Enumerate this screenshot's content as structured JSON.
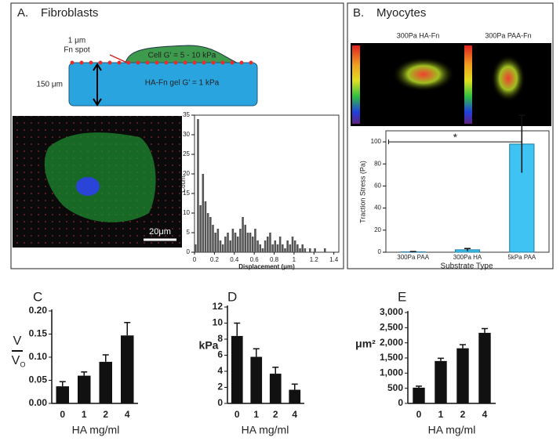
{
  "figure": {
    "A": {
      "label": "A.",
      "title": "Fibroblasts",
      "spot_line1": "1 μm",
      "spot_line2": "Fn spot",
      "cell": "Cell G' = 5 - 10 kPa",
      "height": "150 μm",
      "gel": "HA-Fn gel G' = 1 kPa",
      "scale_bar": "20μm"
    },
    "B": {
      "label": "B.",
      "title": "Myocytes",
      "image_left": "300Pa HA-Fn",
      "image_right": "300Pa PAA-Fn"
    }
  },
  "chart_data": [
    {
      "type": "histogram",
      "xlabel": "Displacement (μm)",
      "ylabel": "Count",
      "color": "#555555",
      "bins": [
        0,
        0.025,
        0.05,
        0.075,
        0.1,
        0.125,
        0.15,
        0.175,
        0.2,
        0.225,
        0.25,
        0.275,
        0.3,
        0.325,
        0.35,
        0.375,
        0.4,
        0.425,
        0.45,
        0.475,
        0.5,
        0.525,
        0.55,
        0.575,
        0.6,
        0.625,
        0.65,
        0.675,
        0.7,
        0.725,
        0.75,
        0.775,
        0.8,
        0.825,
        0.85,
        0.875,
        0.9,
        0.925,
        0.95,
        0.975,
        1.0,
        1.025,
        1.05,
        1.075,
        1.1,
        1.125,
        1.15,
        1.175,
        1.2,
        1.225,
        1.25,
        1.275,
        1.3,
        1.325,
        1.35
      ],
      "counts": [
        2,
        34,
        12,
        20,
        13,
        10,
        9,
        7,
        5,
        6,
        3,
        2,
        4,
        5,
        3,
        6,
        5,
        4,
        6,
        9,
        7,
        5,
        5,
        4,
        6,
        3,
        2,
        1,
        3,
        4,
        5,
        2,
        3,
        2,
        4,
        2,
        1,
        3,
        2,
        4,
        3,
        2,
        1,
        2,
        1,
        0,
        1,
        0,
        1,
        0,
        0,
        0,
        1,
        0
      ],
      "xlim": [
        0,
        1.45
      ],
      "xticks": [
        0,
        0.2,
        0.4,
        0.6,
        0.8,
        1,
        1.2,
        1.4
      ],
      "ylim": [
        0,
        35
      ],
      "yticks": [
        0,
        5,
        10,
        15,
        20,
        25,
        30,
        35
      ]
    },
    {
      "type": "bar",
      "xlabel": "Substrate Type",
      "ylabel": "Traction Stress (Pa)",
      "annotation": "*",
      "color": "#3ec3f2",
      "categories": [
        "300Pa PAA",
        "300Pa HA",
        "5kPa PAA"
      ],
      "values": [
        0.3,
        2.2,
        98
      ],
      "errors": [
        0.3,
        1.2,
        26
      ],
      "ylim": [
        0,
        110
      ],
      "yticks": [
        0,
        20,
        40,
        60,
        80,
        100
      ]
    },
    {
      "type": "bar",
      "panel": "C",
      "xlabel": "HA mg/ml",
      "ylabel": {
        "numerator": "V",
        "denominator": "V",
        "subscript": "O"
      },
      "color": "#111111",
      "categories": [
        "0",
        "1",
        "2",
        "4"
      ],
      "values": [
        0.037,
        0.06,
        0.09,
        0.147
      ],
      "errors": [
        0.01,
        0.008,
        0.015,
        0.028
      ],
      "ylim": [
        0,
        0.2
      ],
      "yticks": [
        {
          "value": 0,
          "label": "0.00"
        },
        0.05,
        {
          "value": 0.1,
          "label": "0.10"
        },
        0.15,
        {
          "value": 0.2,
          "label": "0.20"
        }
      ]
    },
    {
      "type": "bar",
      "panel": "D",
      "xlabel": "HA mg/ml",
      "ylabel": "kPa",
      "color": "#111111",
      "categories": [
        "0",
        "1",
        "2",
        "4"
      ],
      "values": [
        8.4,
        5.8,
        3.7,
        1.7
      ],
      "errors": [
        1.6,
        1.0,
        0.8,
        0.7
      ],
      "ylim": [
        0,
        12
      ],
      "yticks": [
        0,
        2,
        4,
        6,
        8,
        10,
        12
      ]
    },
    {
      "type": "bar",
      "panel": "E",
      "xlabel": "HA mg/ml",
      "ylabel": "μm²",
      "color": "#111111",
      "categories": [
        "0",
        "1",
        "2",
        "4"
      ],
      "values": [
        520,
        1400,
        1820,
        2330
      ],
      "errors": [
        50,
        90,
        120,
        140
      ],
      "ylim": [
        0,
        3000
      ],
      "yticks": [
        0,
        500,
        {
          "value": 1000,
          "label": "1,000"
        },
        {
          "value": 1500,
          "label": "1,500"
        },
        {
          "value": 2000,
          "label": "2,000"
        },
        {
          "value": 2500,
          "label": "2,500"
        },
        {
          "value": 3000,
          "label": "3,000"
        }
      ]
    }
  ]
}
